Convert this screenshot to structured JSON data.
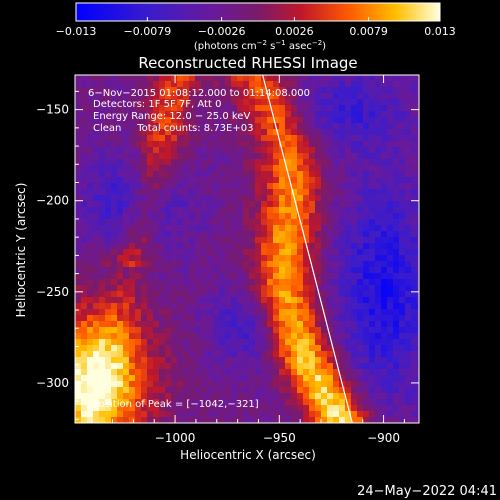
{
  "chart_data": {
    "type": "heatmap",
    "title": "Reconstructed RHESSI Image",
    "xlabel": "Heliocentric X (arcsec)",
    "ylabel": "Heliocentric Y (arcsec)",
    "xlim": [
      -1048,
      -883
    ],
    "ylim": [
      -322,
      -131
    ],
    "xticks": [
      -1000,
      -950,
      -900
    ],
    "xtick_labels": [
      "−1000",
      "−950",
      "−900"
    ],
    "yticks": [
      -300,
      -250,
      -200,
      -150
    ],
    "ytick_labels": [
      "−300",
      "−250",
      "−200",
      "−150"
    ],
    "colorbar": {
      "range": [
        -0.013,
        0.013
      ],
      "ticks": [
        -0.013,
        -0.0079,
        -0.0026,
        0.0026,
        0.0079,
        0.013
      ],
      "tick_labels": [
        "−0.013",
        "−0.0079",
        "−0.0026",
        "0.0026",
        "0.0079",
        "0.013"
      ],
      "unit_label": "(photons cm^-2 s^-1 asec^-2)"
    },
    "annotations": [
      "6−Nov−2015 01:08:12.000 to 01:14:08.000",
      "Detectors: 1F 5F 7F, Att 0",
      "Energy Range: 12.0 − 25.0 keV",
      "Clean     Total counts: 8.73E+03"
    ],
    "peak_label": "Position of Peak = [−1042,−321]",
    "limb_line": [
      {
        "x": -958,
        "y": -131
      },
      {
        "x": -915,
        "y": -322
      }
    ]
  },
  "footer": {
    "timestamp": "24−May−2022 04:41"
  }
}
